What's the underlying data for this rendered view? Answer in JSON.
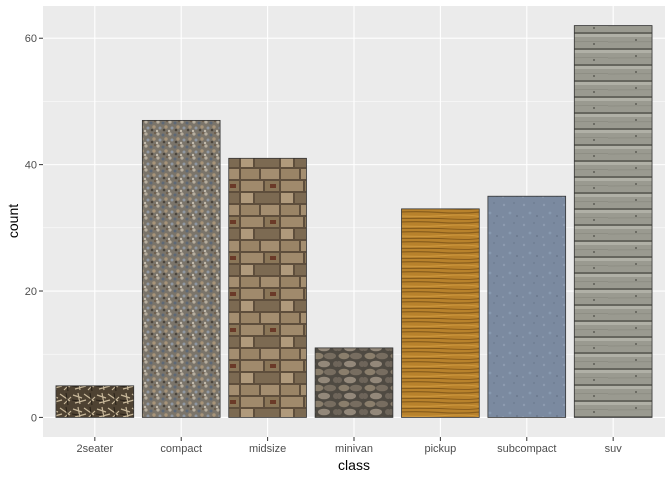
{
  "chart_data": {
    "type": "bar",
    "categories": [
      "2seater",
      "compact",
      "midsize",
      "minivan",
      "pickup",
      "subcompact",
      "suv"
    ],
    "values": [
      5,
      47,
      41,
      11,
      33,
      35,
      62
    ],
    "xlabel": "class",
    "ylabel": "count",
    "ylim": [
      -3.1,
      65.1
    ],
    "yticks": [
      0,
      20,
      40,
      60
    ],
    "grid": true,
    "legend": "none",
    "panel_background": "#ebebeb",
    "grid_color": "#ffffff",
    "bar_outline": "#333333",
    "bar_fills": [
      {
        "texture": "twigs",
        "base": "#5a4a38"
      },
      {
        "texture": "gravel",
        "base": "#8a8478"
      },
      {
        "texture": "stone-wall",
        "base": "#8c7658"
      },
      {
        "texture": "cobblestone",
        "base": "#6d6458"
      },
      {
        "texture": "wood-grain",
        "base": "#b8822c"
      },
      {
        "texture": "slate",
        "base": "#7b8aa0"
      },
      {
        "texture": "wood-planks",
        "base": "#9a9a90"
      }
    ]
  }
}
